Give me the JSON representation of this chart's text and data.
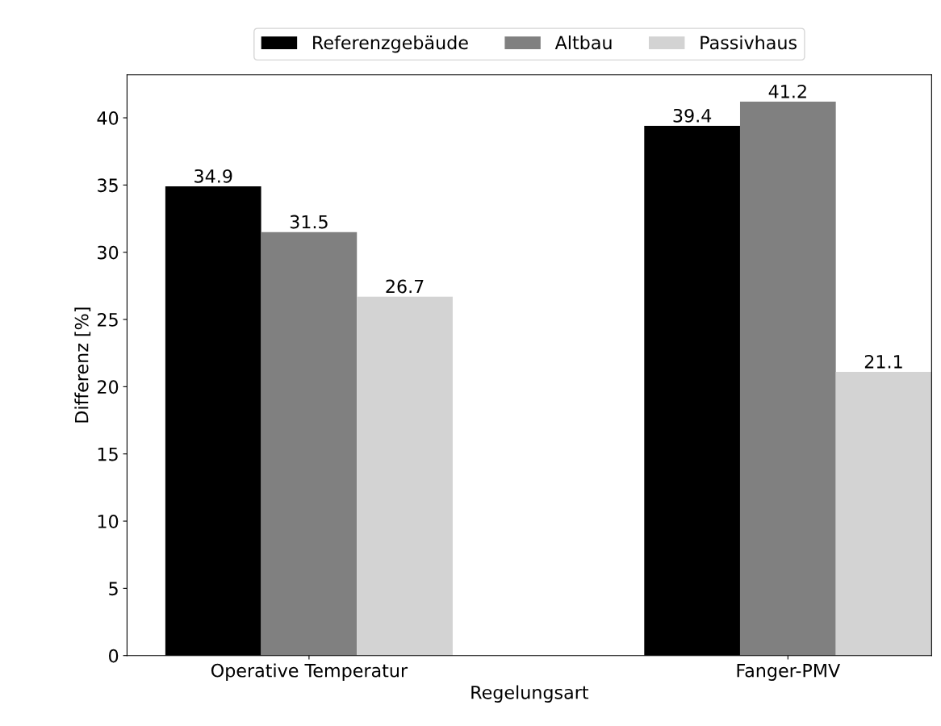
{
  "chart_data": {
    "type": "bar",
    "xlabel": "Regelungsart",
    "ylabel": "Differenz [%]",
    "categories": [
      "Operative Temperatur",
      "Fanger-PMV"
    ],
    "series": [
      {
        "name": "Referenzgebäude",
        "color": "#000000",
        "values": [
          34.9,
          39.4
        ]
      },
      {
        "name": "Altbau",
        "color": "#808080",
        "values": [
          31.5,
          41.2
        ]
      },
      {
        "name": "Passivhaus",
        "color": "#d3d3d3",
        "values": [
          26.7,
          21.1
        ]
      }
    ],
    "ylim": [
      0,
      43.2
    ],
    "yticks": [
      0,
      5,
      10,
      15,
      20,
      25,
      30,
      35,
      40
    ],
    "data_labels": true,
    "grid": false,
    "legend": "top"
  }
}
